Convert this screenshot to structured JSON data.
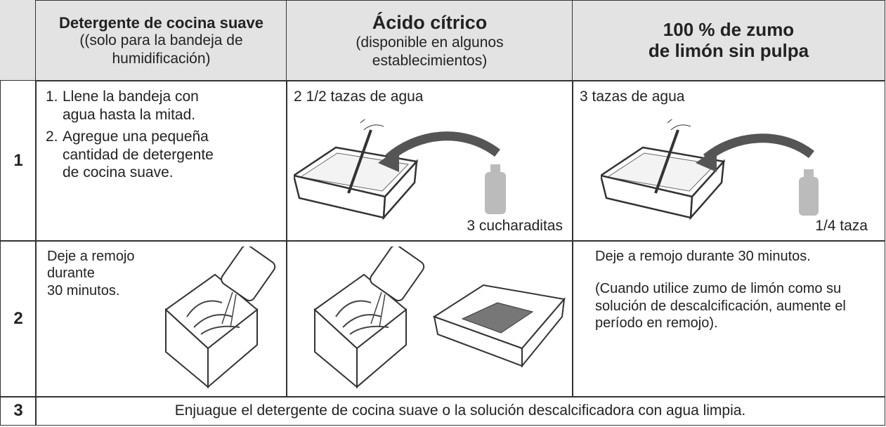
{
  "header": {
    "columns": [
      {
        "title": [
          "Detergente de cocina suave"
        ],
        "subtitle": [
          "((solo para la bandeja de",
          "humidificación)"
        ]
      },
      {
        "title": [
          "Ácido cítrico"
        ],
        "subtitle": [
          "(disponible en algunos",
          "establecimientos)"
        ]
      },
      {
        "title": [
          "100 % de zumo",
          "de limón sin pulpa"
        ],
        "subtitle": []
      }
    ]
  },
  "rows": [
    {
      "step": "1",
      "detergent": {
        "items": [
          {
            "marker": "1.",
            "text": [
              "Llene la bandeja con",
              "agua hasta la mitad."
            ]
          },
          {
            "marker": "2.",
            "text": [
              "Agregue una pequeña",
              "cantidad de detergente",
              "de cocina suave."
            ]
          }
        ]
      },
      "citric": {
        "text": "2 1/2 tazas de agua",
        "amount": "3 cucharaditas"
      },
      "lemon": {
        "text": "3 tazas de agua",
        "amount": "1/4 taza"
      }
    },
    {
      "step": "2",
      "detergent": {
        "text": [
          "Deje a remojo",
          "durante",
          "30 minutos."
        ]
      },
      "lemon": {
        "text": [
          "Deje a remojo durante 30 minutos.",
          "(Cuando utilice zumo de limón como su solución de descalcificación, aumente el período en remojo)."
        ]
      }
    },
    {
      "step": "3",
      "text": "Enjuague el detergente de cocina suave o la solución descalcificadora con agua limpia."
    }
  ]
}
